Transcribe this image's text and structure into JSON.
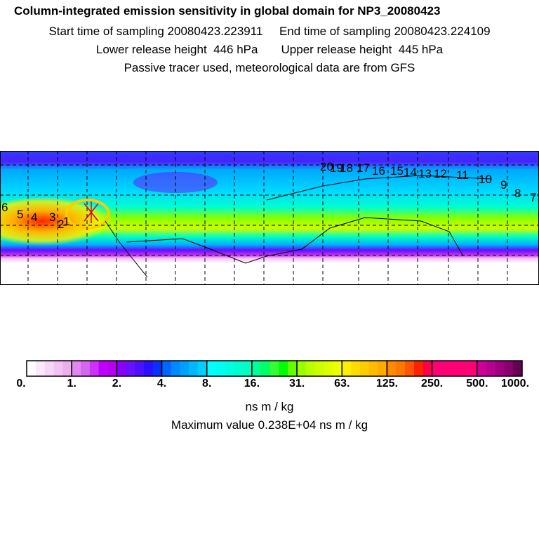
{
  "header": {
    "title": "Column-integrated emission sensitivity in global domain for NP3_20080423",
    "line1": "Start time of sampling 20080423.223911     End time of sampling 20080423.224109",
    "line2": "Lower release height  446 hPa       Upper release height  445 hPa",
    "line3": "Passive tracer used, meteorological data are from GFS"
  },
  "chart_data": {
    "type": "heatmap",
    "title": "Column-integrated emission sensitivity in global domain for NP3_20080423",
    "colorbar": {
      "tick_labels": [
        "0.",
        "1.",
        "2.",
        "4.",
        "8.",
        "16.",
        "31.",
        "63.",
        "125.",
        "250.",
        "500.",
        "1000."
      ],
      "colors": [
        [
          "#ffffff",
          "#fbe8fb",
          "#f6d6f6",
          "#f2c2f2",
          "#eeaeee"
        ],
        [
          "#e088f0",
          "#d466f0",
          "#cc33f5",
          "#c000ff",
          "#b800f0"
        ],
        [
          "#8a00ff",
          "#6a10ff",
          "#4c10ff",
          "#2a10ff",
          "#0a30ff"
        ],
        [
          "#0066ff",
          "#0088ff",
          "#00a0ff",
          "#00b8ff",
          "#00d0ff"
        ],
        [
          "#00ffff",
          "#00fff0",
          "#00ffe0",
          "#00ffd0",
          "#00ffc0"
        ],
        [
          "#00ff99",
          "#00ff66",
          "#33ff33",
          "#00ff00",
          "#66ff00"
        ],
        [
          "#99ff00",
          "#bbff00",
          "#ccff00",
          "#ddff00",
          "#eeff00"
        ],
        [
          "#ffee00",
          "#ffdd00",
          "#ffcc00",
          "#ffbb00",
          "#ffaa00"
        ],
        [
          "#ff8800",
          "#ff7700",
          "#ff5500",
          "#ff2200",
          "#ff0044"
        ],
        [
          "#ff0077",
          "#ff0077",
          "#ff0077",
          "#ff0077",
          "#ff0077"
        ],
        [
          "#cc0099",
          "#b80090",
          "#a00080",
          "#880070",
          "#660055"
        ]
      ],
      "unit": "ns m / kg"
    },
    "max_value_text": "Maximum value  0.238E+04 ns m / kg",
    "trajectory_labels": [
      "1",
      "2",
      "3",
      "4",
      "5",
      "6",
      "7",
      "8",
      "9",
      "10",
      "11",
      "12",
      "13",
      "14",
      "15",
      "16",
      "17",
      "18",
      "19",
      "20"
    ]
  }
}
